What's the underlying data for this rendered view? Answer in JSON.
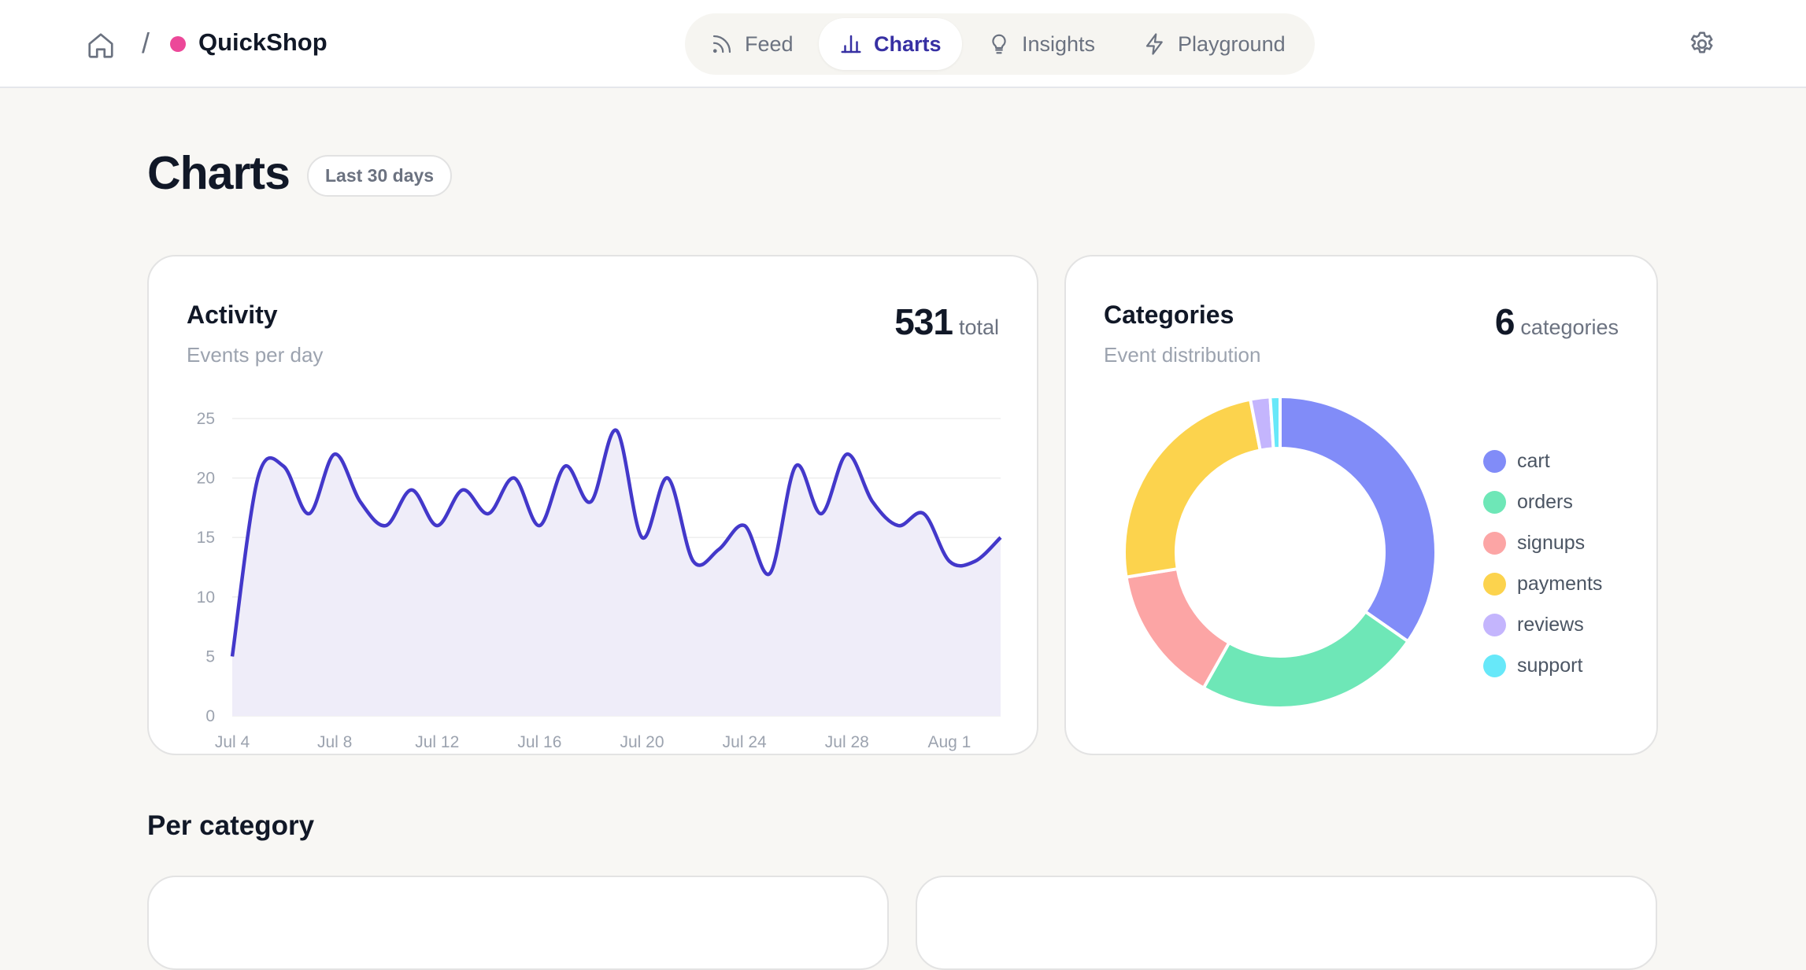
{
  "header": {
    "brand": "QuickShop",
    "breadcrumb_separator": "/",
    "brand_dot_color": "#ec4899",
    "nav_tabs": [
      {
        "label": "Feed",
        "icon": "rss-icon",
        "active": false
      },
      {
        "label": "Charts",
        "icon": "bar-chart-icon",
        "active": true
      },
      {
        "label": "Insights",
        "icon": "lightbulb-icon",
        "active": false
      },
      {
        "label": "Playground",
        "icon": "lightning-icon",
        "active": false
      }
    ]
  },
  "page": {
    "title": "Charts",
    "range_badge": "Last 30 days",
    "section_title": "Per category"
  },
  "activity_card": {
    "title": "Activity",
    "subtitle": "Events per day",
    "total_value": "531",
    "total_unit": "total"
  },
  "categories_card": {
    "title": "Categories",
    "subtitle": "Event distribution",
    "count_value": "6",
    "count_unit": "categories"
  },
  "chart_data": [
    {
      "type": "area",
      "title": "",
      "xlabel": "",
      "ylabel": "",
      "ylim": [
        0,
        25
      ],
      "y_ticks": [
        0,
        5,
        10,
        15,
        20,
        25
      ],
      "x_tick_labels": [
        "Jul 4",
        "Jul 8",
        "Jul 12",
        "Jul 16",
        "Jul 20",
        "Jul 24",
        "Jul 28",
        "Aug 1"
      ],
      "grid": true,
      "line_color": "#4338ca",
      "fill_color": "#efedf9",
      "x": [
        "Jul 4",
        "Jul 5",
        "Jul 6",
        "Jul 7",
        "Jul 8",
        "Jul 9",
        "Jul 10",
        "Jul 11",
        "Jul 12",
        "Jul 13",
        "Jul 14",
        "Jul 15",
        "Jul 16",
        "Jul 17",
        "Jul 18",
        "Jul 19",
        "Jul 20",
        "Jul 21",
        "Jul 22",
        "Jul 23",
        "Jul 24",
        "Jul 25",
        "Jul 26",
        "Jul 27",
        "Jul 28",
        "Jul 29",
        "Jul 30",
        "Jul 31",
        "Aug 1",
        "Aug 2",
        "Aug 3"
      ],
      "series": [
        {
          "values": [
            5,
            20,
            21,
            17,
            22,
            18,
            16,
            19,
            16,
            19,
            17,
            20,
            16,
            21,
            18,
            24,
            15,
            20,
            13,
            14,
            16,
            12,
            21,
            17,
            22,
            18,
            16,
            17,
            13,
            13,
            15
          ]
        }
      ]
    },
    {
      "type": "pie",
      "donut": true,
      "categories": [
        "cart",
        "orders",
        "signups",
        "payments",
        "reviews",
        "support"
      ],
      "values": [
        34,
        23,
        14,
        24,
        2,
        1
      ],
      "colors": [
        "#818cf8",
        "#6ee7b7",
        "#fca5a5",
        "#fcd34d",
        "#c4b5fd",
        "#67e8f9"
      ]
    }
  ]
}
